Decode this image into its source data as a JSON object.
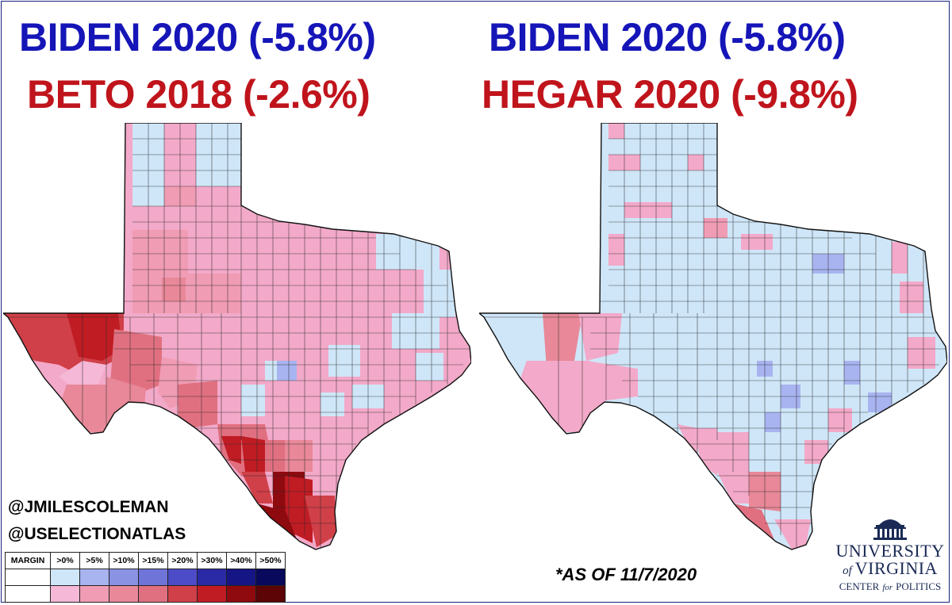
{
  "titles": {
    "left_line1": "BIDEN 2020 (-5.8%)",
    "left_line2": "BETO 2018 (-2.6%)",
    "right_line1": "BIDEN 2020 (-5.8%)",
    "right_line2": "HEGAR 2020 (-9.8%)"
  },
  "credits": {
    "handle1": "@JMILESCOLEMAN",
    "handle2": "@USELECTIONATLAS"
  },
  "legend": {
    "label": "MARGIN",
    "bins": [
      ">0%",
      ">5%",
      ">10%",
      ">15%",
      ">20%",
      ">30%",
      ">40%",
      ">50%"
    ],
    "blue_colors": [
      "#cfe6f8",
      "#a8b4f0",
      "#8a92e4",
      "#6f74d8",
      "#4c4cc8",
      "#2a2aa6",
      "#151585",
      "#08085c"
    ],
    "red_colors": [
      "#f5b8d6",
      "#f09cb4",
      "#e88898",
      "#e07080",
      "#d04048",
      "#c01c24",
      "#8e0a0e",
      "#5c0406"
    ]
  },
  "note": "*AS OF 11/7/2020",
  "logo": {
    "line1": "UNIVERSITY",
    "line2": "of",
    "line3": "VIRGINIA",
    "line4a": "CENTER",
    "line4b": "for",
    "line4c": "POLITICS"
  },
  "colors": {
    "title_blue": "#1515b8",
    "title_red": "#c0141c",
    "frame": "#1a237e"
  }
}
